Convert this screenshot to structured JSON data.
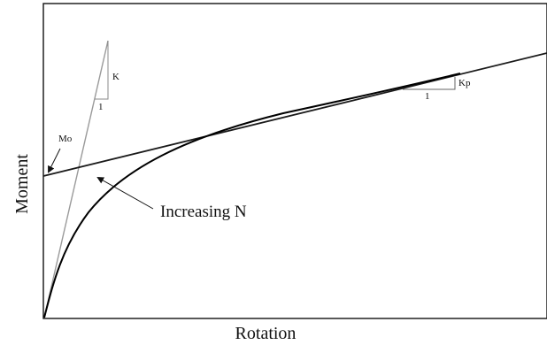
{
  "diagram": {
    "ylabel": "Moment",
    "xlabel": "Rotation",
    "annotations": {
      "initial_stiffness": "K",
      "initial_slope_run": "1",
      "plastic_stiffness": "Kp",
      "plastic_slope_run": "1",
      "intercept": "Mo",
      "trend": "Increasing N"
    },
    "colors": {
      "frame": "#111111",
      "curve": "#000000",
      "initial_stiffness_line": "#9a9a9a",
      "plastic_line": "#1a1a1a"
    }
  }
}
